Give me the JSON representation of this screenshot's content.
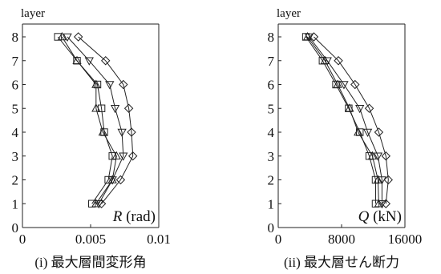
{
  "chart_data": [
    {
      "type": "line",
      "panel_caption": "(i) 最大層間変形角",
      "ylabel": "layer",
      "xlabel_var": "R",
      "xlabel_unit": "(rad)",
      "xlim": [
        0,
        0.01
      ],
      "ylim": [
        0,
        8.5
      ],
      "xticks": [
        0,
        0.005,
        0.01
      ],
      "xtick_labels": [
        "0",
        "0.005",
        "0.01"
      ],
      "yticks": [
        0,
        1,
        2,
        3,
        4,
        5,
        6,
        7,
        8
      ],
      "ytick_labels": [
        "0",
        "1",
        "2",
        "3",
        "4",
        "5",
        "6",
        "7",
        "8"
      ],
      "y": [
        1,
        2,
        3,
        4,
        5,
        6,
        7,
        8
      ],
      "series": [
        {
          "marker": "square",
          "values": [
            0.0051,
            0.0063,
            0.0066,
            0.006,
            0.0058,
            0.0055,
            0.004,
            0.0026
          ]
        },
        {
          "marker": "triangle-up",
          "values": [
            0.0054,
            0.0066,
            0.0069,
            0.0059,
            0.0054,
            0.0054,
            0.004,
            0.0029
          ]
        },
        {
          "marker": "triangle-down",
          "values": [
            0.0056,
            0.0066,
            0.0074,
            0.0073,
            0.0068,
            0.0064,
            0.0049,
            0.0033
          ]
        },
        {
          "marker": "diamond",
          "values": [
            0.0058,
            0.0072,
            0.0081,
            0.008,
            0.0078,
            0.0074,
            0.0061,
            0.0041
          ]
        }
      ]
    },
    {
      "type": "line",
      "panel_caption": "(ii) 最大層せん断力",
      "ylabel": "layer",
      "xlabel_var": "Q",
      "xlabel_unit": "(kN)",
      "xlim": [
        0,
        16000
      ],
      "ylim": [
        0,
        8.5
      ],
      "xticks": [
        0,
        8000,
        16000
      ],
      "xtick_labels": [
        "0",
        "8000",
        "16000"
      ],
      "yticks": [
        0,
        1,
        2,
        3,
        4,
        5,
        6,
        7,
        8
      ],
      "ytick_labels": [
        "0",
        "1",
        "2",
        "3",
        "4",
        "5",
        "6",
        "7",
        "8"
      ],
      "y": [
        1,
        2,
        3,
        4,
        5,
        6,
        7,
        8
      ],
      "series": [
        {
          "marker": "square",
          "values": [
            12300,
            12300,
            11500,
            10300,
            8900,
            7300,
            5600,
            3500
          ]
        },
        {
          "marker": "triangle-up",
          "values": [
            12700,
            12600,
            11900,
            10100,
            9000,
            7500,
            5900,
            3700
          ]
        },
        {
          "marker": "triangle-down",
          "values": [
            13100,
            13100,
            12600,
            11300,
            10300,
            8300,
            6200,
            3900
          ]
        },
        {
          "marker": "diamond",
          "values": [
            13600,
            13900,
            13600,
            12700,
            11500,
            9700,
            7600,
            4500
          ]
        }
      ]
    }
  ]
}
